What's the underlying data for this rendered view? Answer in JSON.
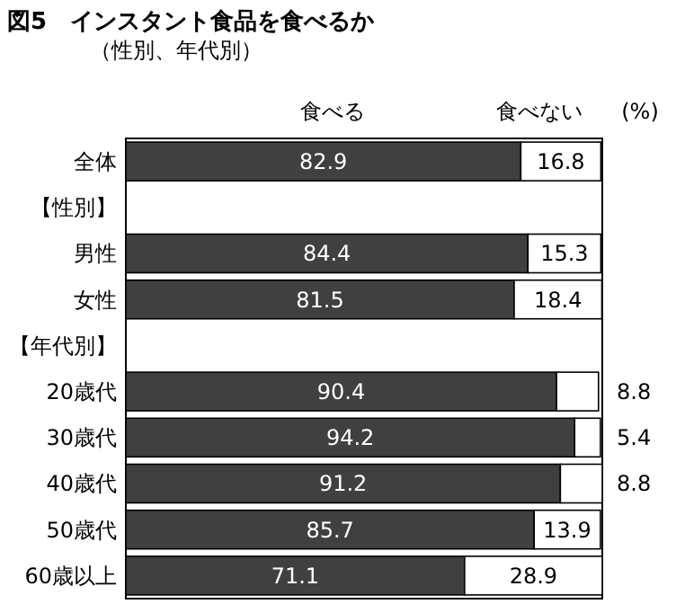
{
  "chart_data": {
    "type": "bar",
    "orientation": "horizontal",
    "stacked": true,
    "title": "図5　インスタント食品を食べるか",
    "subtitle": "（性別、年代別）",
    "categories": [
      "全体",
      "【性別】",
      "男性",
      "女性",
      "【年代別】",
      "20歳代",
      "30歳代",
      "40歳代",
      "50歳代",
      "60歳以上"
    ],
    "series": [
      {
        "name": "食べる",
        "color": "#404040",
        "values": [
          82.9,
          null,
          84.4,
          81.5,
          null,
          90.4,
          94.2,
          91.2,
          85.7,
          71.1
        ]
      },
      {
        "name": "食べない",
        "color": "#ffffff",
        "values": [
          16.8,
          null,
          15.3,
          18.4,
          null,
          8.8,
          5.4,
          8.8,
          13.9,
          28.9
        ]
      }
    ],
    "xlim": [
      0,
      100
    ],
    "data_labels": true,
    "legend": "top",
    "annotations": [
      "(%)"
    ]
  }
}
